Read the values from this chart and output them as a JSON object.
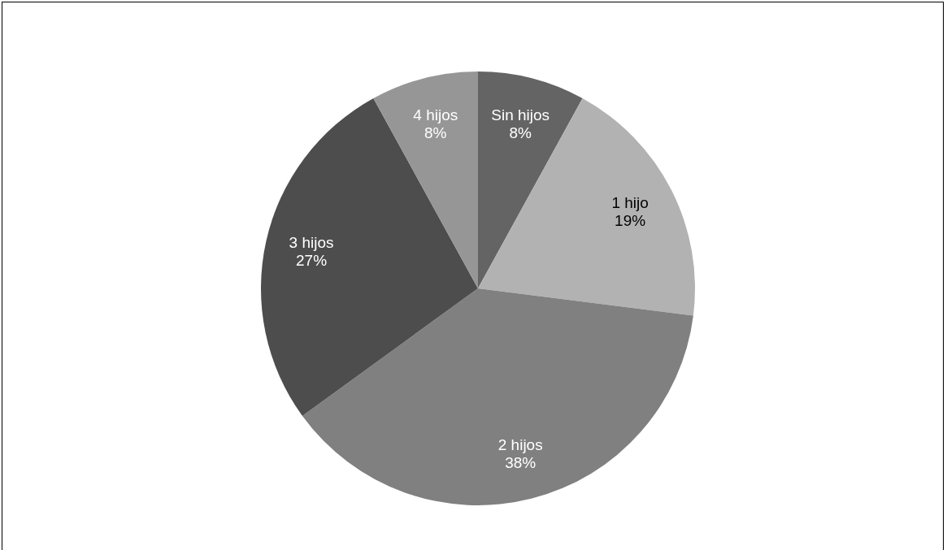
{
  "chart_data": {
    "type": "pie",
    "categories": [
      "Sin hijos",
      "1 hijo",
      "2 hijos",
      "3 hijos",
      "4 hijos"
    ],
    "values": [
      8,
      19,
      38,
      27,
      8
    ],
    "value_labels": [
      "8%",
      "19%",
      "38%",
      "27%",
      "8%"
    ],
    "colors": [
      "#646464",
      "#b2b2b2",
      "#808080",
      "#4d4d4d",
      "#969696"
    ]
  }
}
